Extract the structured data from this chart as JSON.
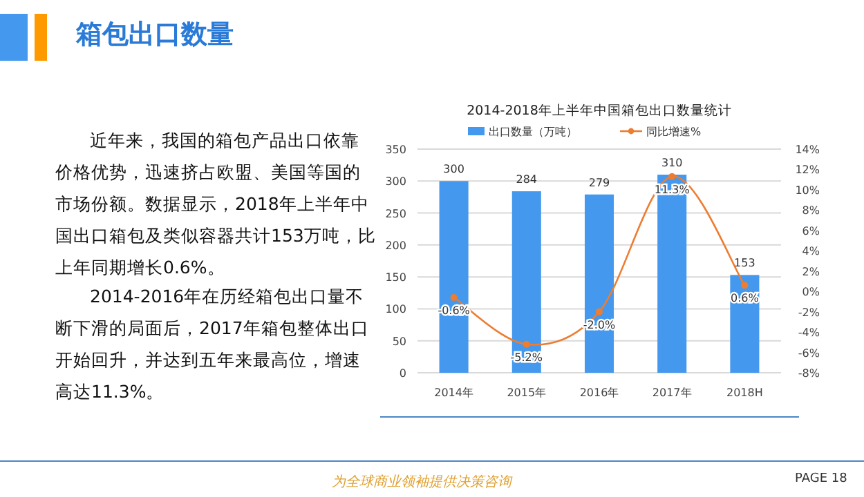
{
  "chart_data": {
    "type": "bar",
    "title": "2014-2018年上半年中国箱包出口数量统计",
    "categories": [
      "2014年",
      "2015年",
      "2016年",
      "2017年",
      "2018H"
    ],
    "series": [
      {
        "name": "出口数量（万吨）",
        "color": "#4499ee",
        "values": [
          300,
          284,
          279,
          310,
          153
        ]
      },
      {
        "name": "同比增速%",
        "type": "line",
        "axis": "y2",
        "color": "#ed7d31",
        "marker": "circle",
        "values": [
          -0.6,
          -5.2,
          -2.0,
          11.3,
          0.6
        ],
        "value_labels": [
          "-0.6%",
          "-5.2%",
          "-2.0%",
          "11.3%",
          "0.6%"
        ]
      }
    ],
    "data_labels": true,
    "ylim": [
      0,
      350
    ],
    "yticks": [
      0,
      50,
      100,
      150,
      200,
      250,
      300,
      350
    ],
    "y2lim": [
      -8,
      14
    ],
    "y2ticks": [
      {
        "value": -8,
        "label": "-8%"
      },
      {
        "value": -6,
        "label": "-6%"
      },
      {
        "value": -4,
        "label": "-4%"
      },
      {
        "value": -2,
        "label": "-2%"
      },
      {
        "value": 0,
        "label": "0%"
      },
      {
        "value": 2,
        "label": "2%"
      },
      {
        "value": 4,
        "label": "4%"
      },
      {
        "value": 6,
        "label": "6%"
      },
      {
        "value": 8,
        "label": "8%"
      },
      {
        "value": 10,
        "label": "10%"
      },
      {
        "value": 12,
        "label": "12%"
      },
      {
        "value": 14,
        "label": "14%"
      }
    ],
    "grid": "y",
    "legend": "top",
    "annotations": [
      "箱包出口数量",
      "近年来，我国的箱包产品出口依靠价格优势，迅速挤占欧盟、美国等国的市场份额。数据显示，2018年上半年中国出口箱包及类似容器共计153万吨，比上年同期增长0.6%。",
      "2014-2016年在历经箱包出口量不断下滑的局面后，2017年箱包整体出口开始回升，并达到五年来最高位，增速高达11.3%。",
      "为全球商业领袖提供决策咨询",
      "PAGE 18"
    ]
  }
}
